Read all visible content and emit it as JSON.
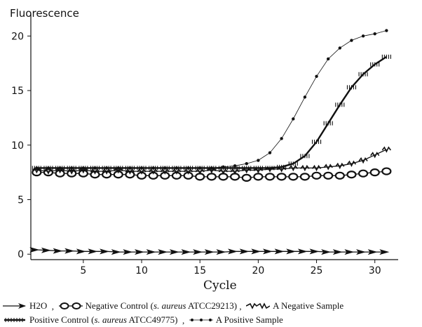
{
  "chart_data": {
    "type": "line",
    "ylabel": "Fluorescence",
    "xlabel": "Cycle",
    "xlim": [
      0.5,
      32
    ],
    "ylim": [
      -0.5,
      21.5
    ],
    "xticks": [
      5,
      10,
      15,
      20,
      25,
      30
    ],
    "yticks": [
      0,
      5,
      10,
      15,
      20
    ],
    "x": [
      1,
      2,
      3,
      4,
      5,
      6,
      7,
      8,
      9,
      10,
      11,
      12,
      13,
      14,
      15,
      16,
      17,
      18,
      19,
      20,
      21,
      22,
      23,
      24,
      25,
      26,
      27,
      28,
      29,
      30,
      31
    ],
    "series": [
      {
        "name": "H2O",
        "marker": "arrow",
        "values": [
          0.4,
          0.35,
          0.3,
          0.3,
          0.25,
          0.25,
          0.25,
          0.2,
          0.2,
          0.2,
          0.2,
          0.2,
          0.2,
          0.2,
          0.2,
          0.2,
          0.2,
          0.25,
          0.25,
          0.25,
          0.25,
          0.25,
          0.25,
          0.25,
          0.25,
          0.2,
          0.2,
          0.2,
          0.2,
          0.2,
          0.2
        ]
      },
      {
        "name": "Negative Control",
        "marker": "oval",
        "values": [
          7.5,
          7.5,
          7.4,
          7.4,
          7.4,
          7.3,
          7.3,
          7.3,
          7.3,
          7.2,
          7.2,
          7.2,
          7.2,
          7.2,
          7.1,
          7.1,
          7.1,
          7.1,
          7.0,
          7.1,
          7.1,
          7.1,
          7.1,
          7.1,
          7.2,
          7.2,
          7.2,
          7.3,
          7.4,
          7.5,
          7.6
        ]
      },
      {
        "name": "A Negative Sample",
        "marker": "zigzag",
        "values": [
          7.7,
          7.6,
          7.7,
          7.6,
          7.7,
          7.6,
          7.6,
          7.7,
          7.6,
          7.6,
          7.6,
          7.6,
          7.6,
          7.6,
          7.6,
          7.7,
          7.6,
          7.6,
          7.7,
          7.7,
          7.8,
          7.8,
          7.9,
          7.9,
          7.9,
          8.0,
          8.1,
          8.3,
          8.6,
          9.1,
          9.6
        ]
      },
      {
        "name": "Positive Control",
        "marker": "hatch",
        "values": [
          7.9,
          7.9,
          7.9,
          7.9,
          7.9,
          7.9,
          7.9,
          7.9,
          7.9,
          7.9,
          7.9,
          7.9,
          7.9,
          7.9,
          7.9,
          7.9,
          7.9,
          7.9,
          7.9,
          7.9,
          7.9,
          8.0,
          8.3,
          9.0,
          10.3,
          12.0,
          13.7,
          15.3,
          16.5,
          17.4,
          18.1
        ]
      },
      {
        "name": "A Positive Sample",
        "marker": "dot",
        "values": [
          7.9,
          7.9,
          7.9,
          7.9,
          7.9,
          7.9,
          7.9,
          7.9,
          7.9,
          7.9,
          7.9,
          7.9,
          7.9,
          7.9,
          7.9,
          7.9,
          8.0,
          8.1,
          8.3,
          8.6,
          9.3,
          10.6,
          12.4,
          14.4,
          16.3,
          17.9,
          18.9,
          19.6,
          20.0,
          20.2,
          20.5
        ]
      }
    ],
    "legend": {
      "h2o": "H2O",
      "neg_control_a": "Negative Control (",
      "neg_control_species": "s. aureus",
      "neg_control_b": " ATCC29213)",
      "neg_sample": "A Negative Sample",
      "pos_control_a": "Positive Control (",
      "pos_control_species": "s. aureus",
      "pos_control_b": " ATCC49775)",
      "pos_sample": "A Positive Sample",
      "placement": "bottom"
    },
    "grid": false
  }
}
